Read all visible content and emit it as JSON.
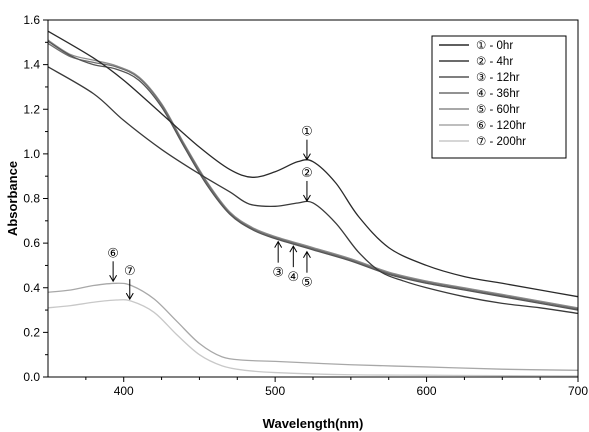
{
  "chart_data": {
    "type": "line",
    "xlabel": "Wavelength(nm)",
    "ylabel": "Absorbance",
    "xlim": [
      350,
      700
    ],
    "ylim": [
      0,
      1.6
    ],
    "xticks": [
      400,
      500,
      600,
      700
    ],
    "yticks": [
      0.0,
      0.2,
      0.4,
      0.6,
      0.8,
      1.0,
      1.2,
      1.4,
      1.6
    ],
    "ytick_labels": [
      "0.0",
      "0.2",
      "0.4",
      "0.6",
      "0.8",
      "1.0",
      "1.2",
      "1.4",
      "1.6"
    ],
    "grid": false,
    "legend_position": "top-right",
    "series": [
      {
        "name": "① - 0hr",
        "color": "#2a2a2a",
        "points": [
          [
            350,
            1.55
          ],
          [
            380,
            1.43
          ],
          [
            400,
            1.33
          ],
          [
            425,
            1.18
          ],
          [
            450,
            1.03
          ],
          [
            470,
            0.93
          ],
          [
            485,
            0.895
          ],
          [
            500,
            0.92
          ],
          [
            515,
            0.965
          ],
          [
            525,
            0.965
          ],
          [
            540,
            0.87
          ],
          [
            555,
            0.72
          ],
          [
            575,
            0.58
          ],
          [
            600,
            0.5
          ],
          [
            625,
            0.45
          ],
          [
            650,
            0.42
          ],
          [
            675,
            0.39
          ],
          [
            700,
            0.36
          ]
        ]
      },
      {
        "name": "② - 4hr",
        "color": "#3a3a3a",
        "points": [
          [
            350,
            1.39
          ],
          [
            380,
            1.27
          ],
          [
            400,
            1.15
          ],
          [
            425,
            1.02
          ],
          [
            450,
            0.91
          ],
          [
            470,
            0.83
          ],
          [
            483,
            0.775
          ],
          [
            500,
            0.765
          ],
          [
            515,
            0.78
          ],
          [
            525,
            0.78
          ],
          [
            540,
            0.69
          ],
          [
            555,
            0.56
          ],
          [
            570,
            0.47
          ],
          [
            585,
            0.43
          ],
          [
            600,
            0.4
          ],
          [
            625,
            0.36
          ],
          [
            650,
            0.33
          ],
          [
            675,
            0.31
          ],
          [
            700,
            0.285
          ]
        ]
      },
      {
        "name": "③ - 12hr",
        "color": "#555555",
        "points": [
          [
            350,
            1.505
          ],
          [
            365,
            1.44
          ],
          [
            380,
            1.4
          ],
          [
            395,
            1.38
          ],
          [
            410,
            1.33
          ],
          [
            425,
            1.21
          ],
          [
            440,
            1.03
          ],
          [
            455,
            0.86
          ],
          [
            470,
            0.73
          ],
          [
            485,
            0.66
          ],
          [
            500,
            0.62
          ],
          [
            525,
            0.57
          ],
          [
            550,
            0.52
          ],
          [
            575,
            0.46
          ],
          [
            600,
            0.42
          ],
          [
            625,
            0.39
          ],
          [
            650,
            0.36
          ],
          [
            675,
            0.33
          ],
          [
            700,
            0.3
          ]
        ]
      },
      {
        "name": "④ - 36hr",
        "color": "#6e6e6e",
        "points": [
          [
            350,
            1.495
          ],
          [
            365,
            1.435
          ],
          [
            380,
            1.41
          ],
          [
            395,
            1.39
          ],
          [
            410,
            1.34
          ],
          [
            425,
            1.22
          ],
          [
            440,
            1.04
          ],
          [
            455,
            0.87
          ],
          [
            470,
            0.735
          ],
          [
            485,
            0.665
          ],
          [
            500,
            0.625
          ],
          [
            525,
            0.575
          ],
          [
            550,
            0.525
          ],
          [
            575,
            0.465
          ],
          [
            600,
            0.425
          ],
          [
            625,
            0.395
          ],
          [
            650,
            0.365
          ],
          [
            675,
            0.335
          ],
          [
            700,
            0.305
          ]
        ]
      },
      {
        "name": "⑤ - 60hr",
        "color": "#8c8c8c",
        "points": [
          [
            350,
            1.51
          ],
          [
            365,
            1.445
          ],
          [
            380,
            1.42
          ],
          [
            395,
            1.395
          ],
          [
            410,
            1.345
          ],
          [
            425,
            1.225
          ],
          [
            440,
            1.045
          ],
          [
            455,
            0.875
          ],
          [
            470,
            0.74
          ],
          [
            485,
            0.67
          ],
          [
            500,
            0.63
          ],
          [
            525,
            0.58
          ],
          [
            550,
            0.53
          ],
          [
            575,
            0.47
          ],
          [
            600,
            0.43
          ],
          [
            625,
            0.4
          ],
          [
            650,
            0.37
          ],
          [
            675,
            0.34
          ],
          [
            700,
            0.31
          ]
        ]
      },
      {
        "name": "⑥ - 120hr",
        "color": "#a8a8a8",
        "points": [
          [
            350,
            0.38
          ],
          [
            365,
            0.39
          ],
          [
            380,
            0.41
          ],
          [
            395,
            0.42
          ],
          [
            405,
            0.41
          ],
          [
            420,
            0.35
          ],
          [
            435,
            0.25
          ],
          [
            450,
            0.15
          ],
          [
            465,
            0.09
          ],
          [
            480,
            0.075
          ],
          [
            500,
            0.07
          ],
          [
            550,
            0.055
          ],
          [
            600,
            0.045
          ],
          [
            650,
            0.035
          ],
          [
            700,
            0.03
          ]
        ]
      },
      {
        "name": "⑦ - 200hr",
        "color": "#c8c8c8",
        "points": [
          [
            350,
            0.31
          ],
          [
            365,
            0.32
          ],
          [
            380,
            0.335
          ],
          [
            395,
            0.345
          ],
          [
            405,
            0.34
          ],
          [
            420,
            0.29
          ],
          [
            435,
            0.19
          ],
          [
            450,
            0.1
          ],
          [
            465,
            0.05
          ],
          [
            480,
            0.03
          ],
          [
            500,
            0.02
          ],
          [
            550,
            0.01
          ],
          [
            600,
            0.008
          ],
          [
            650,
            0.006
          ],
          [
            700,
            0.005
          ]
        ]
      }
    ],
    "annotations": [
      {
        "label": "①",
        "x": 521,
        "y": 0.965,
        "side": "above"
      },
      {
        "label": "②",
        "x": 521,
        "y": 0.78,
        "side": "above"
      },
      {
        "label": "③",
        "x": 502,
        "y": 0.62,
        "side": "below"
      },
      {
        "label": "④",
        "x": 512,
        "y": 0.6,
        "side": "below"
      },
      {
        "label": "⑤",
        "x": 521,
        "y": 0.575,
        "side": "below"
      },
      {
        "label": "⑥",
        "x": 393,
        "y": 0.42,
        "side": "above"
      },
      {
        "label": "⑦",
        "x": 404,
        "y": 0.34,
        "side": "above"
      }
    ]
  }
}
